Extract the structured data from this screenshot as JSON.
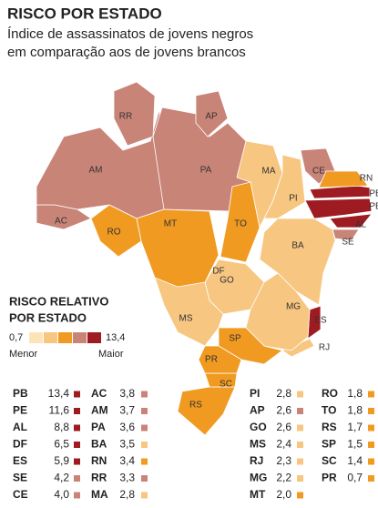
{
  "title": "RISCO POR ESTADO",
  "subtitle": [
    "Índice de assassinatos de jovens negros",
    "em comparação aos de jovens brancos"
  ],
  "legend": {
    "title": [
      "RISCO RELATIVO",
      "POR ESTADO"
    ],
    "min": {
      "value": 0.7,
      "label": "0,7"
    },
    "max": {
      "value": 13.4,
      "label": "13,4"
    },
    "min_label": "Menor",
    "max_label": "Maior",
    "colors": [
      "#fde4b8",
      "#f7c680",
      "#f09a22",
      "#c98478",
      "#9e1b22"
    ]
  },
  "states": [
    {
      "code": "PB",
      "value": 13.4,
      "label": "13,4",
      "color": "#9e1b22"
    },
    {
      "code": "PE",
      "value": 11.6,
      "label": "11,6",
      "color": "#9e1b22"
    },
    {
      "code": "AL",
      "value": 8.8,
      "label": "8,8",
      "color": "#9e1b22"
    },
    {
      "code": "DF",
      "value": 6.5,
      "label": "6,5",
      "color": "#9e1b22"
    },
    {
      "code": "ES",
      "value": 5.9,
      "label": "5,9",
      "color": "#9e1b22"
    },
    {
      "code": "SE",
      "value": 4.2,
      "label": "4,2",
      "color": "#c98478"
    },
    {
      "code": "CE",
      "value": 4.0,
      "label": "4,0",
      "color": "#c98478"
    },
    {
      "code": "AC",
      "value": 3.8,
      "label": "3,8",
      "color": "#c98478"
    },
    {
      "code": "AM",
      "value": 3.7,
      "label": "3,7",
      "color": "#c98478"
    },
    {
      "code": "PA",
      "value": 3.6,
      "label": "3,6",
      "color": "#c98478"
    },
    {
      "code": "BA",
      "value": 3.5,
      "label": "3,5",
      "color": "#f7c680"
    },
    {
      "code": "RN",
      "value": 3.4,
      "label": "3,4",
      "color": "#f09a22"
    },
    {
      "code": "RR",
      "value": 3.3,
      "label": "3,3",
      "color": "#c98478"
    },
    {
      "code": "MA",
      "value": 2.8,
      "label": "2,8",
      "color": "#f7c680"
    },
    {
      "code": "PI",
      "value": 2.8,
      "label": "2,8",
      "color": "#f7c680"
    },
    {
      "code": "AP",
      "value": 2.6,
      "label": "2,6",
      "color": "#c98478"
    },
    {
      "code": "GO",
      "value": 2.6,
      "label": "2,6",
      "color": "#f7c680"
    },
    {
      "code": "MS",
      "value": 2.4,
      "label": "2,4",
      "color": "#f7c680"
    },
    {
      "code": "RJ",
      "value": 2.3,
      "label": "2,3",
      "color": "#f7c680"
    },
    {
      "code": "MG",
      "value": 2.2,
      "label": "2,2",
      "color": "#f7c680"
    },
    {
      "code": "MT",
      "value": 2.0,
      "label": "2,0",
      "color": "#f09a22"
    },
    {
      "code": "RO",
      "value": 1.8,
      "label": "1,8",
      "color": "#f09a22"
    },
    {
      "code": "TO",
      "value": 1.8,
      "label": "1,8",
      "color": "#f09a22"
    },
    {
      "code": "RS",
      "value": 1.7,
      "label": "1,7",
      "color": "#f09a22"
    },
    {
      "code": "SP",
      "value": 1.5,
      "label": "1,5",
      "color": "#f09a22"
    },
    {
      "code": "SC",
      "value": 1.4,
      "label": "1,4",
      "color": "#f09a22"
    },
    {
      "code": "PR",
      "value": 0.7,
      "label": "0,7",
      "color": "#f09a22"
    }
  ]
}
